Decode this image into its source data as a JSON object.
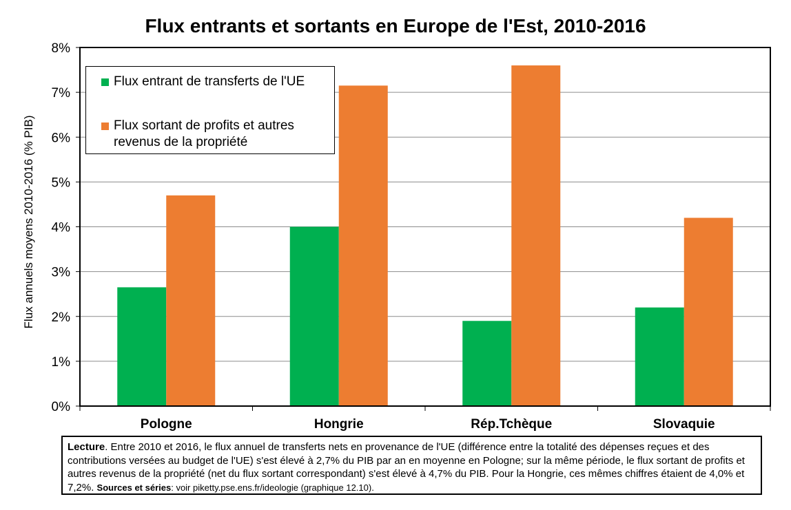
{
  "chart_data": {
    "type": "bar",
    "title": "Flux entrants et sortants en Europe de l'Est, 2010-2016",
    "xlabel": "",
    "ylabel": "Flux annuels moyens 2010-2016 (% PIB)",
    "categories": [
      "Pologne",
      "Hongrie",
      "Rép.Tchèque",
      "Slovaquie"
    ],
    "series": [
      {
        "name": "Flux entrant de transferts de l'UE",
        "color": "#00b050",
        "values": [
          2.65,
          4.0,
          1.9,
          2.2
        ]
      },
      {
        "name": "Flux sortant de profits et autres\nrevenus de la propriété",
        "color": "#ed7d31",
        "values": [
          4.7,
          7.15,
          7.6,
          4.2
        ]
      }
    ],
    "ylim": [
      0,
      8
    ],
    "yticks": [
      "0%",
      "1%",
      "2%",
      "3%",
      "4%",
      "5%",
      "6%",
      "7%",
      "8%"
    ],
    "grid": true,
    "legend": "top-left"
  },
  "note": {
    "lead": "Lecture",
    "text": ". Entre 2010 et 2016, le flux annuel de transferts nets en provenance de l'UE (différence entre la totalité des dépenses reçues et des contributions versées au budget de l'UE) s'est élevé à 2,7% du PIB par an en moyenne en Pologne; sur la même période, le flux sortant de profits et autres revenus de la propriété (net du flux sortant correspondant) s'est élevé à 4,7% du PIB. Pour la Hongrie, ces mêmes chiffres étaient de 4,0% et 7,2%. ",
    "sources_label": "Sources et séries",
    "sources_text": ": voir piketty.pse.ens.fr/ideologie (graphique 12.10)."
  }
}
